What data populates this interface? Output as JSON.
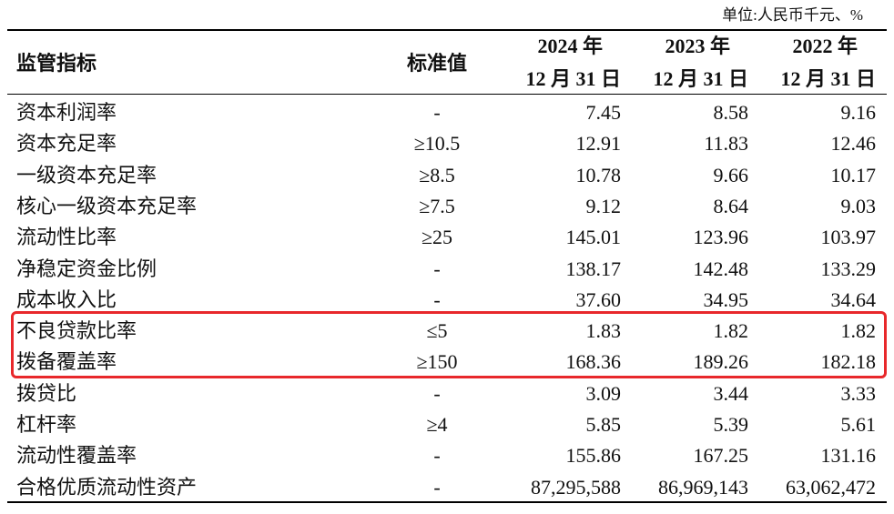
{
  "unit": "单位:人民币千元、%",
  "header": {
    "indicator": "监管指标",
    "standard": "标准值",
    "periods": [
      {
        "year": "2024 年",
        "date": "12 月 31 日"
      },
      {
        "year": "2023 年",
        "date": "12 月 31 日"
      },
      {
        "year": "2022 年",
        "date": "12 月 31 日"
      }
    ]
  },
  "table": {
    "rows": [
      [
        "资本利润率",
        "-",
        "7.45",
        "8.58",
        "9.16"
      ],
      [
        "资本充足率",
        "≥10.5",
        "12.91",
        "11.83",
        "12.46"
      ],
      [
        "一级资本充足率",
        "≥8.5",
        "10.78",
        "9.66",
        "10.17"
      ],
      [
        "核心一级资本充足率",
        "≥7.5",
        "9.12",
        "8.64",
        "9.03"
      ],
      [
        "流动性比率",
        "≥25",
        "145.01",
        "123.96",
        "103.97"
      ],
      [
        "净稳定资金比例",
        "-",
        "138.17",
        "142.48",
        "133.29"
      ],
      [
        "成本收入比",
        "-",
        "37.60",
        "34.95",
        "34.64"
      ],
      [
        "不良贷款比率",
        "≤5",
        "1.83",
        "1.82",
        "1.82"
      ],
      [
        "拨备覆盖率",
        "≥150",
        "168.36",
        "189.26",
        "182.18"
      ],
      [
        "拨贷比",
        "-",
        "3.09",
        "3.44",
        "3.33"
      ],
      [
        "杠杆率",
        "≥4",
        "5.85",
        "5.39",
        "5.61"
      ],
      [
        "流动性覆盖率",
        "-",
        "155.86",
        "167.25",
        "131.16"
      ],
      [
        "合格优质流动性资产",
        "-",
        "87,295,588",
        "86,969,143",
        "63,062,472"
      ]
    ]
  }
}
